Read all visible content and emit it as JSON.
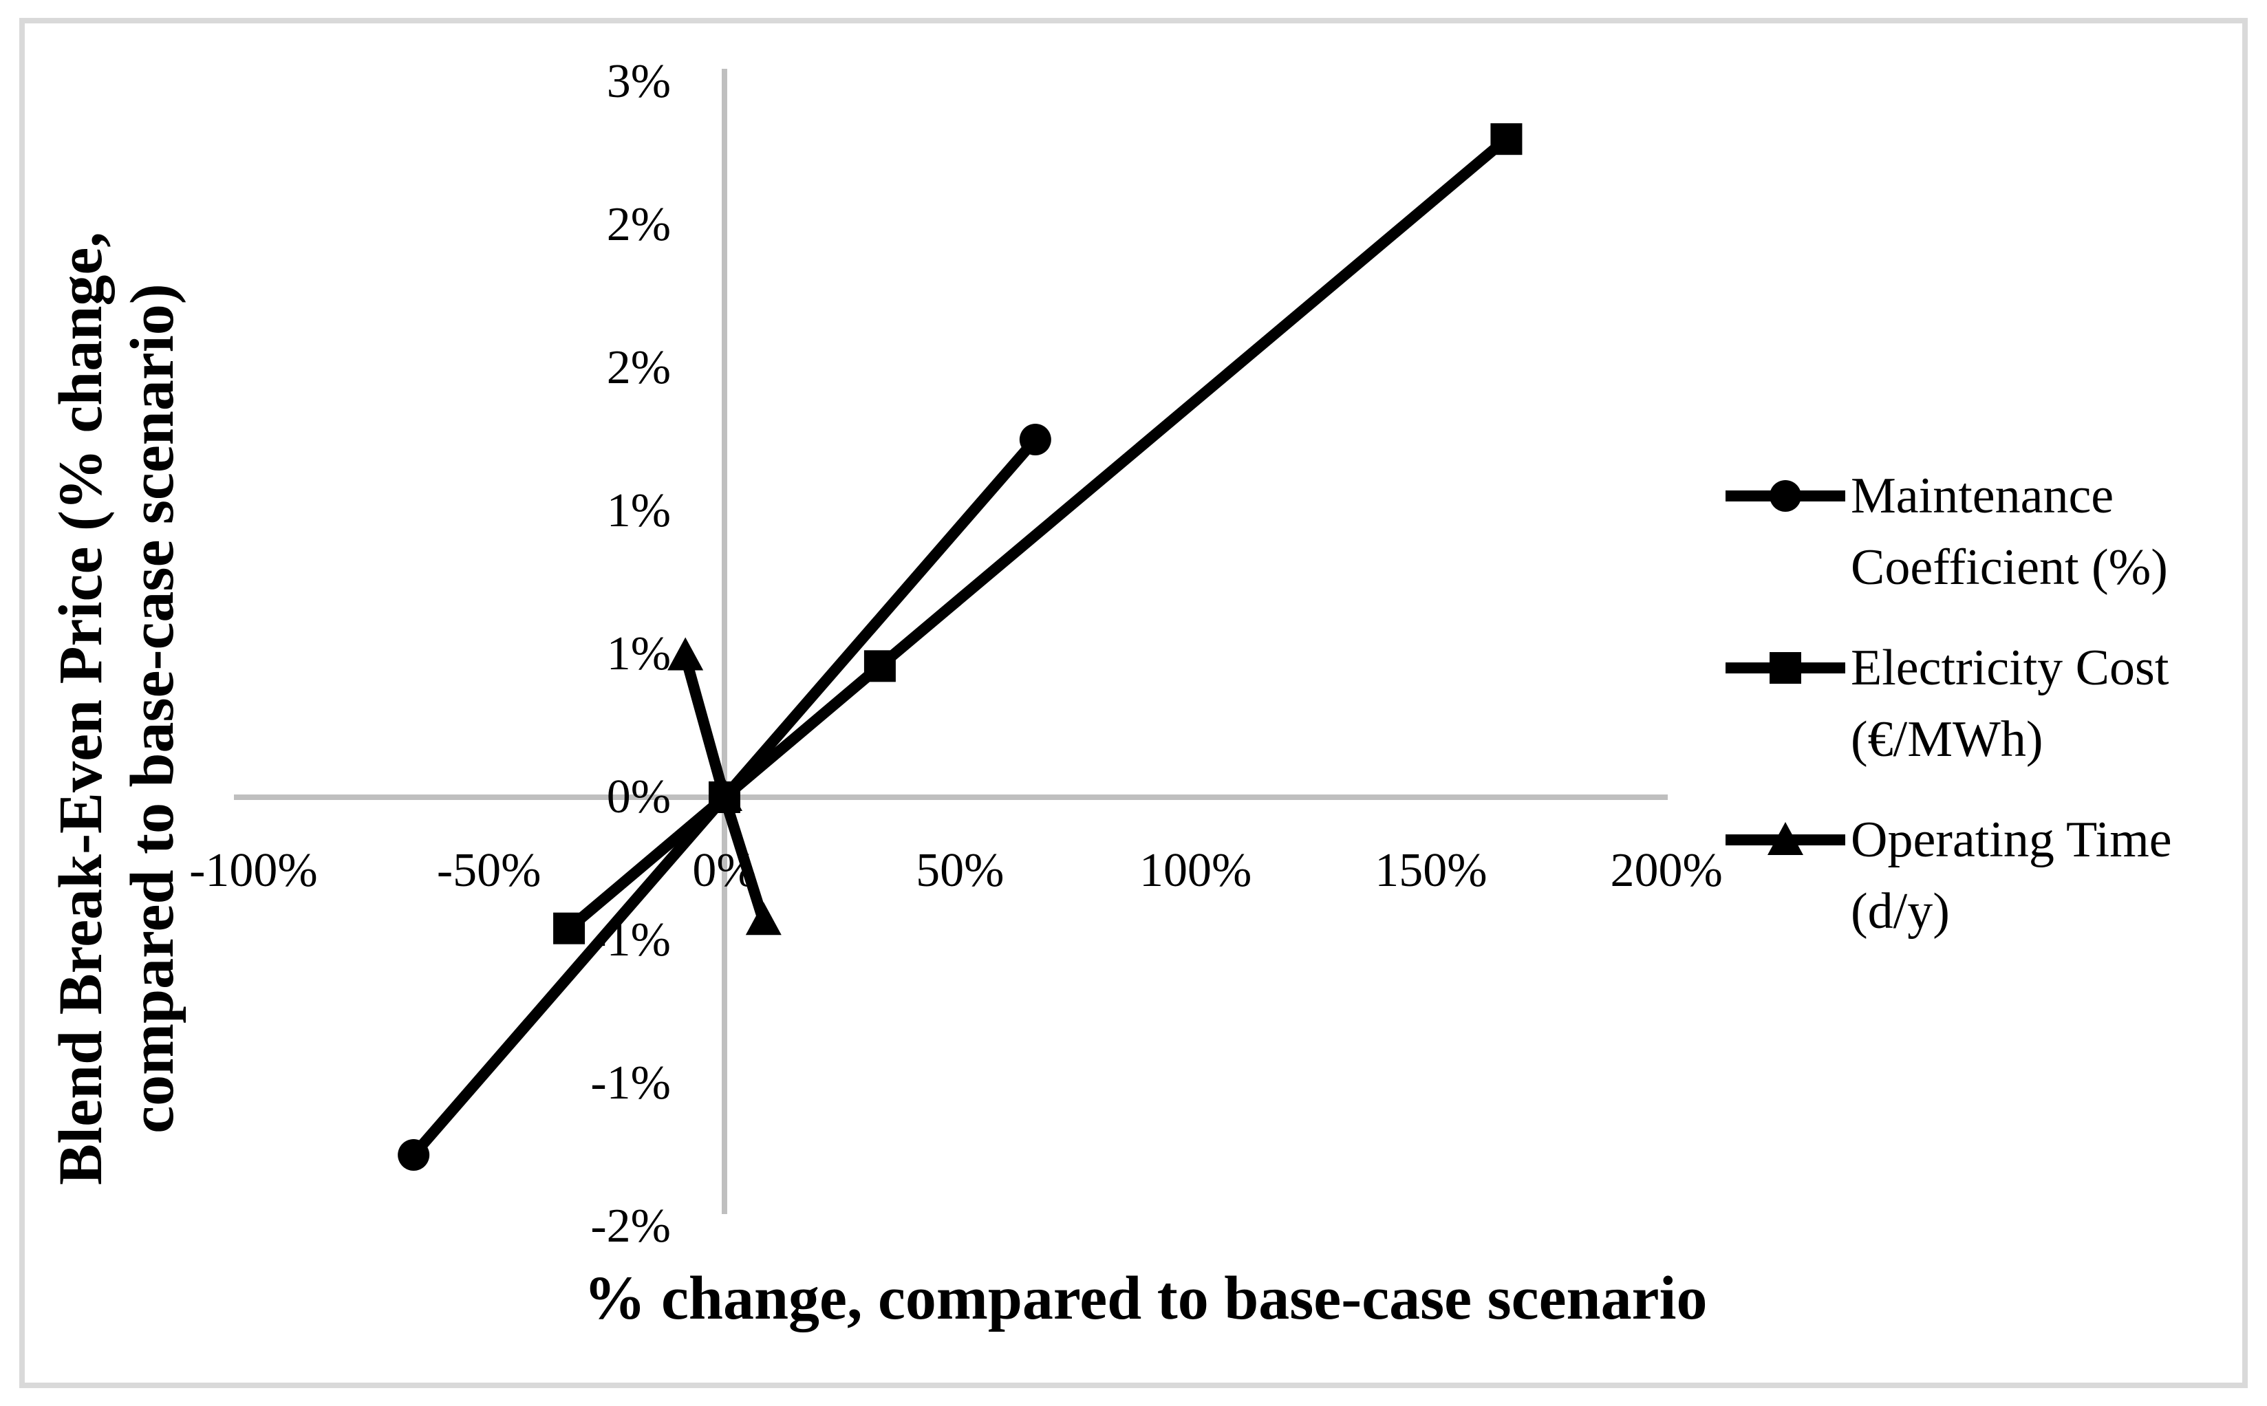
{
  "chart_data": {
    "type": "line",
    "title": "",
    "xlabel": "% change, compared to base-case scenario",
    "ylabel_line1": "Blend Break-Even Price (% change,",
    "ylabel_line2": "compared to base-case scenario)",
    "legend_position": "right",
    "grid": false,
    "x_axis": {
      "range": [
        -105,
        205
      ],
      "ticks": [
        {
          "label": "-100%",
          "value": -100
        },
        {
          "label": "-50%",
          "value": -50
        },
        {
          "label": "0%",
          "value": 0
        },
        {
          "label": "50%",
          "value": 50
        },
        {
          "label": "100%",
          "value": 100
        },
        {
          "label": "150%",
          "value": 150
        },
        {
          "label": "200%",
          "value": 200
        }
      ]
    },
    "y_axis": {
      "range": [
        -1.8,
        3.0
      ],
      "ticks": [
        {
          "label": "3%",
          "value": 3.0
        },
        {
          "label": "2%",
          "value": 2.4
        },
        {
          "label": "2%",
          "value": 1.8
        },
        {
          "label": "1%",
          "value": 1.2
        },
        {
          "label": "1%",
          "value": 0.6
        },
        {
          "label": "0%",
          "value": 0.0
        },
        {
          "label": "-1%",
          "value": -0.6
        },
        {
          "label": "-1%",
          "value": -1.2
        },
        {
          "label": "-2%",
          "value": -1.8
        }
      ]
    },
    "series": [
      {
        "key": "maintenance-coefficient",
        "name": "Maintenance Coefficient (%)",
        "legend_lines": [
          "Maintenance",
          "Coefficient (%)"
        ],
        "marker": "circle",
        "marker_icon": "circle-marker-icon",
        "color": "#000000",
        "points": [
          {
            "x": -66,
            "y": -1.5
          },
          {
            "x": 0,
            "y": 0
          },
          {
            "x": 66,
            "y": 1.5
          }
        ]
      },
      {
        "key": "electricity-cost",
        "name": "Electricity Cost (€/MWh)",
        "legend_lines": [
          "Electricity Cost",
          "(€/MWh)"
        ],
        "marker": "square",
        "marker_icon": "square-marker-icon",
        "color": "#000000",
        "points": [
          {
            "x": -33,
            "y": -0.55
          },
          {
            "x": 0,
            "y": 0
          },
          {
            "x": 33,
            "y": 0.55
          },
          {
            "x": 166,
            "y": 2.76
          }
        ]
      },
      {
        "key": "operating-time",
        "name": "Operating Time (d/y)",
        "legend_lines": [
          "Operating Time",
          "(d/y)"
        ],
        "marker": "triangle",
        "marker_icon": "triangle-marker-icon",
        "color": "#000000",
        "points": [
          {
            "x": -8.3,
            "y": 0.59
          },
          {
            "x": 0,
            "y": 0
          },
          {
            "x": 8.3,
            "y": -0.52
          }
        ]
      }
    ]
  },
  "colors": {
    "background": "#ffffff",
    "frame_border": "#d9d9d9",
    "axis_line": "#bfbfbf",
    "series": "#000000",
    "text": "#000000"
  }
}
